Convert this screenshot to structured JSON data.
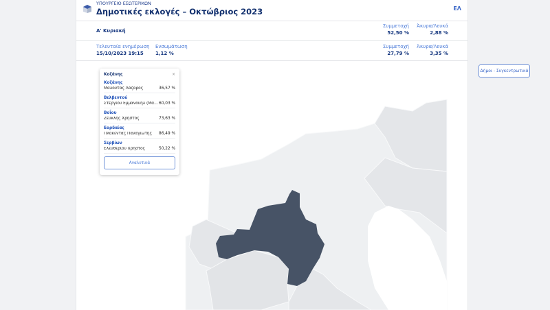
{
  "header": {
    "ministry": "ΥΠΟΥΡΓΕΙΟ ΕΣΩΤΕΡΙΚΩΝ",
    "title": "Δημοτικές εκλογές – Οκτώβριος 2023",
    "lang": "ΕΛ",
    "logo_icon": "ballot-box-icon"
  },
  "round": {
    "label": "Α' Κυριακή",
    "turnout_label": "Συμμετοχή",
    "turnout": "52,50 %",
    "invalid_label": "Άκυρα/Λευκά",
    "invalid": "2,88 %"
  },
  "status": {
    "updated_label": "Τελευταία ενημέρωση",
    "updated": "15/10/2023 19:15",
    "counted_label": "Ενσωμάτωση",
    "counted": "1,12 %",
    "turnout_label": "Συμμετοχή",
    "turnout": "27,79 %",
    "invalid_label": "Άκυρα/Λευκά",
    "invalid": "3,35 %"
  },
  "summary_button": "Δήμοι - Συγκεντρωτικά",
  "popup": {
    "title": "Κοζάνης",
    "close": "×",
    "items": [
      {
        "municipality": "Κοζάνης",
        "candidate": "Μαλούτας Λάζαρος",
        "pct": "36,57 %"
      },
      {
        "municipality": "Βελβεντού",
        "candidate": "Στεργίου Εμμανουήλ (Μα...",
        "pct": "60,03 %"
      },
      {
        "municipality": "Βοΐου",
        "candidate": "Ζευκλής Χρήστος",
        "pct": "73,63 %"
      },
      {
        "municipality": "Εορδαίας",
        "candidate": "Πλακεντάς Παναγιώτης",
        "pct": "86,49 %"
      },
      {
        "municipality": "Σερβίων",
        "candidate": "Ελευθερίου Χρήστος",
        "pct": "50,22 %"
      }
    ],
    "details": "Αναλυτικά"
  },
  "colors": {
    "selected": "#475366",
    "region": "#e4e6e9",
    "region_light": "#eef0f2"
  }
}
